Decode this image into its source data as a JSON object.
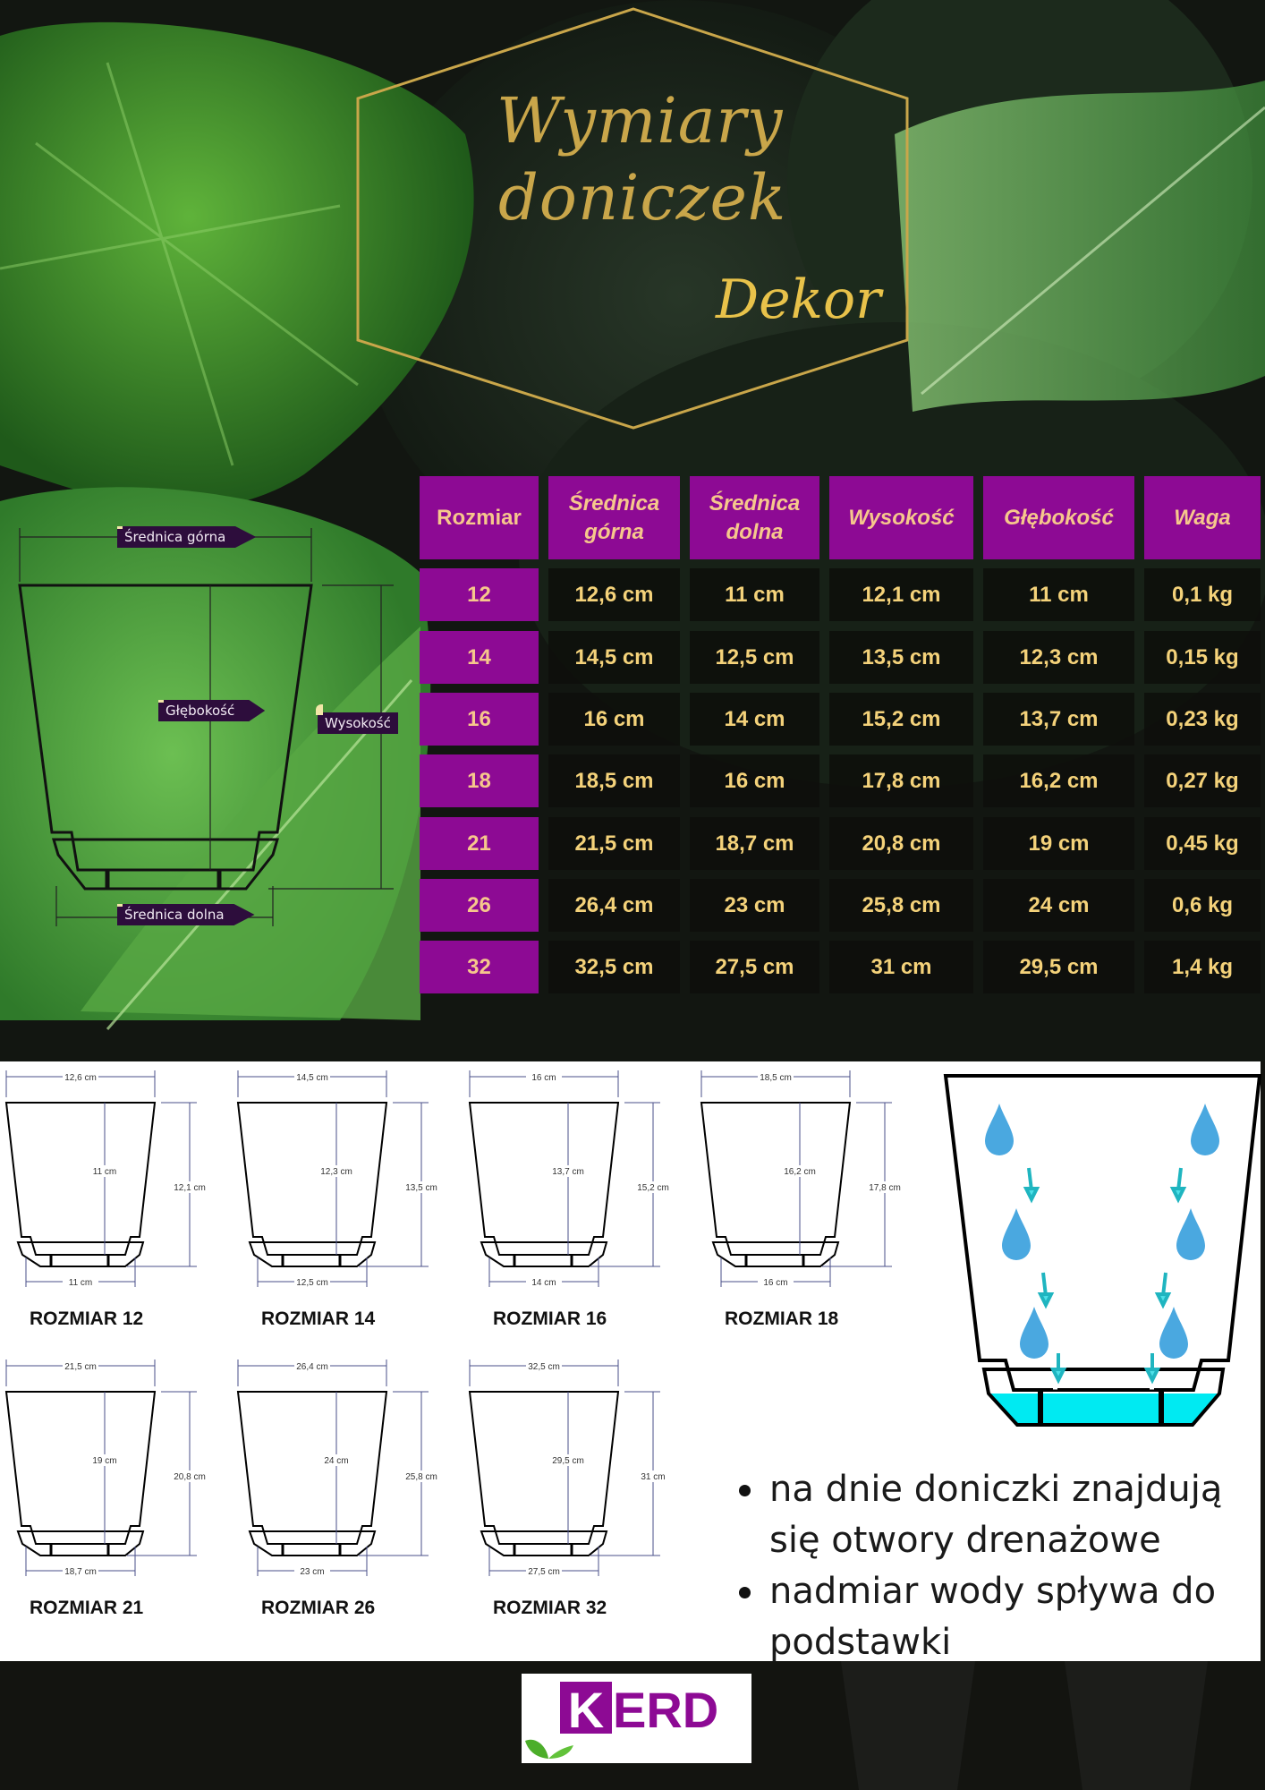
{
  "header": {
    "title_line1": "Wymiary",
    "title_line2": "doniczek",
    "brand_script": "Dekor"
  },
  "diagram_labels": {
    "top_diameter": "Średnica górna",
    "depth": "Głębokość",
    "height": "Wysokość",
    "bottom_diameter": "Średnica dolna"
  },
  "table": {
    "headers": [
      "Rozmiar",
      "Średnica górna",
      "Średnica dolna",
      "Wysokość",
      "Głębokość",
      "Waga"
    ],
    "rows": [
      [
        "12",
        "12,6 cm",
        "11 cm",
        "12,1 cm",
        "11 cm",
        "0,1 kg"
      ],
      [
        "14",
        "14,5 cm",
        "12,5 cm",
        "13,5 cm",
        "12,3 cm",
        "0,15 kg"
      ],
      [
        "16",
        "16 cm",
        "14 cm",
        "15,2 cm",
        "13,7 cm",
        "0,23 kg"
      ],
      [
        "18",
        "18,5 cm",
        "16 cm",
        "17,8 cm",
        "16,2 cm",
        "0,27 kg"
      ],
      [
        "21",
        "21,5 cm",
        "18,7 cm",
        "20,8 cm",
        "19 cm",
        "0,45 kg"
      ],
      [
        "26",
        "26,4 cm",
        "23 cm",
        "25,8 cm",
        "24 cm",
        "0,6 kg"
      ],
      [
        "32",
        "32,5 cm",
        "27,5 cm",
        "31 cm",
        "29,5 cm",
        "1,4 kg"
      ]
    ]
  },
  "size_diagrams": [
    {
      "label": "ROZMIAR 12",
      "top": "12,6 cm",
      "bottom": "11 cm",
      "height": "12,1 cm",
      "depth": "11 cm"
    },
    {
      "label": "ROZMIAR 14",
      "top": "14,5 cm",
      "bottom": "12,5 cm",
      "height": "13,5 cm",
      "depth": "12,3 cm"
    },
    {
      "label": "ROZMIAR 16",
      "top": "16 cm",
      "bottom": "14 cm",
      "height": "15,2 cm",
      "depth": "13,7 cm"
    },
    {
      "label": "ROZMIAR 18",
      "top": "18,5 cm",
      "bottom": "16 cm",
      "height": "17,8 cm",
      "depth": "16,2 cm"
    },
    {
      "label": "ROZMIAR 21",
      "top": "21,5 cm",
      "bottom": "18,7 cm",
      "height": "20,8 cm",
      "depth": "19 cm"
    },
    {
      "label": "ROZMIAR 26",
      "top": "26,4 cm",
      "bottom": "23 cm",
      "height": "25,8 cm",
      "depth": "24 cm"
    },
    {
      "label": "ROZMIAR 32",
      "top": "32,5 cm",
      "bottom": "27,5 cm",
      "height": "31 cm",
      "depth": "29,5 cm"
    }
  ],
  "bullets": [
    "na dnie doniczki znajdują się otwory drenażowe",
    "nadmiar wody spływa do podstawki"
  ],
  "logo": {
    "text": "KERD"
  },
  "colors": {
    "purple": "#8d0a94",
    "gold": "#c9a64a",
    "cell_text": "#f4d27a",
    "water": "#00e5f0",
    "drop": "#4aa8e0",
    "label_bg": "#2d0d3c"
  }
}
